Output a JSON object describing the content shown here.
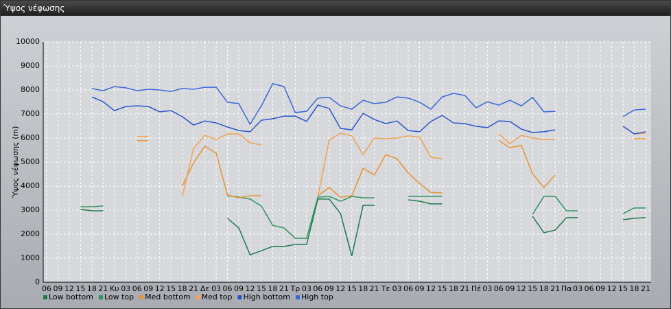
{
  "window_title": "Ύψος νέφωσης",
  "chart_data": {
    "type": "line",
    "y_label": "Ύψος νέφωσης (m)",
    "categories": [
      "06",
      "09",
      "12",
      "15",
      "18",
      "21",
      "Κυ",
      "03",
      "06",
      "09",
      "12",
      "15",
      "18",
      "21",
      "Δε",
      "03",
      "06",
      "09",
      "12",
      "15",
      "18",
      "21",
      "Τρ",
      "03",
      "06",
      "09",
      "12",
      "15",
      "18",
      "21",
      "Τε",
      "03",
      "06",
      "09",
      "12",
      "15",
      "18",
      "21",
      "Πέ",
      "03",
      "06",
      "09",
      "12",
      "15",
      "18",
      "21",
      "Πα",
      "03",
      "06",
      "09",
      "12",
      "15",
      "18",
      "21"
    ],
    "ylim": [
      0,
      10000
    ],
    "yticks": [
      0,
      1000,
      2000,
      3000,
      4000,
      5000,
      6000,
      7000,
      8000,
      9000,
      10000
    ],
    "grid": true,
    "series": [
      {
        "name": "Low bottom",
        "color": "#1f7a4c",
        "values": [
          null,
          null,
          null,
          3030,
          2970,
          2970,
          null,
          null,
          null,
          null,
          null,
          null,
          null,
          null,
          null,
          null,
          2660,
          2260,
          1140,
          1310,
          1490,
          1490,
          1570,
          1570,
          3460,
          3460,
          2860,
          1090,
          3200,
          3200,
          null,
          null,
          3430,
          3370,
          3260,
          3260,
          null,
          null,
          null,
          null,
          null,
          null,
          null,
          2740,
          2060,
          2170,
          2690,
          2690,
          null,
          null,
          null,
          2600,
          2660,
          2690
        ]
      },
      {
        "name": "Low top",
        "color": "#2e9460",
        "values": [
          null,
          null,
          null,
          3140,
          3140,
          3170,
          null,
          null,
          null,
          null,
          null,
          null,
          null,
          null,
          null,
          null,
          3600,
          3540,
          3460,
          3170,
          2370,
          2260,
          1830,
          1830,
          3540,
          3570,
          3370,
          3570,
          3510,
          3510,
          null,
          null,
          3570,
          3570,
          3570,
          3570,
          null,
          null,
          null,
          null,
          null,
          null,
          null,
          2830,
          3570,
          3570,
          2970,
          2970,
          null,
          null,
          null,
          2860,
          3090,
          3090
        ]
      },
      {
        "name": "Med bottom",
        "color": "#e8922e",
        "values": [
          null,
          null,
          null,
          null,
          null,
          null,
          null,
          null,
          5890,
          5890,
          null,
          null,
          4000,
          4970,
          5660,
          5370,
          3630,
          3510,
          3600,
          3600,
          null,
          null,
          null,
          null,
          3600,
          3940,
          3540,
          3600,
          4740,
          4460,
          5310,
          5140,
          4540,
          4110,
          3740,
          3710,
          null,
          null,
          null,
          null,
          5890,
          5600,
          5690,
          4510,
          3940,
          4460,
          null,
          null,
          null,
          null,
          null,
          null,
          5970,
          5970
        ]
      },
      {
        "name": "Med top",
        "color": "#f0a250",
        "values": [
          null,
          null,
          null,
          null,
          null,
          null,
          null,
          null,
          6060,
          6060,
          null,
          null,
          3570,
          5570,
          6110,
          5940,
          6170,
          6170,
          5800,
          5710,
          null,
          null,
          null,
          null,
          3570,
          5910,
          6200,
          6090,
          5310,
          6000,
          5970,
          6000,
          6090,
          6030,
          5200,
          5140,
          null,
          null,
          null,
          null,
          6170,
          5770,
          6110,
          6000,
          5940,
          5940,
          null,
          null,
          null,
          null,
          null,
          null,
          6170,
          6200
        ]
      },
      {
        "name": "High bottom",
        "color": "#2a55cc",
        "values": [
          null,
          null,
          null,
          null,
          7710,
          7510,
          7140,
          7310,
          7340,
          7310,
          7090,
          7140,
          6890,
          6540,
          6710,
          6630,
          6460,
          6310,
          6260,
          6740,
          6800,
          6910,
          6910,
          6690,
          7370,
          7230,
          6400,
          6340,
          7030,
          6770,
          6600,
          6710,
          6310,
          6260,
          6690,
          6940,
          6630,
          6600,
          6490,
          6430,
          6710,
          6690,
          6370,
          6230,
          6260,
          6340,
          null,
          null,
          null,
          null,
          null,
          6490,
          6170,
          6260
        ]
      },
      {
        "name": "High top",
        "color": "#3a66dd",
        "values": [
          null,
          null,
          null,
          null,
          8060,
          7970,
          8140,
          8090,
          7970,
          8030,
          8000,
          7940,
          8060,
          8030,
          8110,
          8110,
          7490,
          7430,
          6570,
          7340,
          8260,
          8140,
          7060,
          7110,
          7660,
          7690,
          7340,
          7200,
          7570,
          7430,
          7490,
          7710,
          7660,
          7490,
          7200,
          7710,
          7860,
          7770,
          7260,
          7510,
          7370,
          7570,
          7340,
          7690,
          7090,
          7110,
          null,
          null,
          null,
          null,
          null,
          6890,
          7170,
          7200
        ]
      }
    ]
  }
}
